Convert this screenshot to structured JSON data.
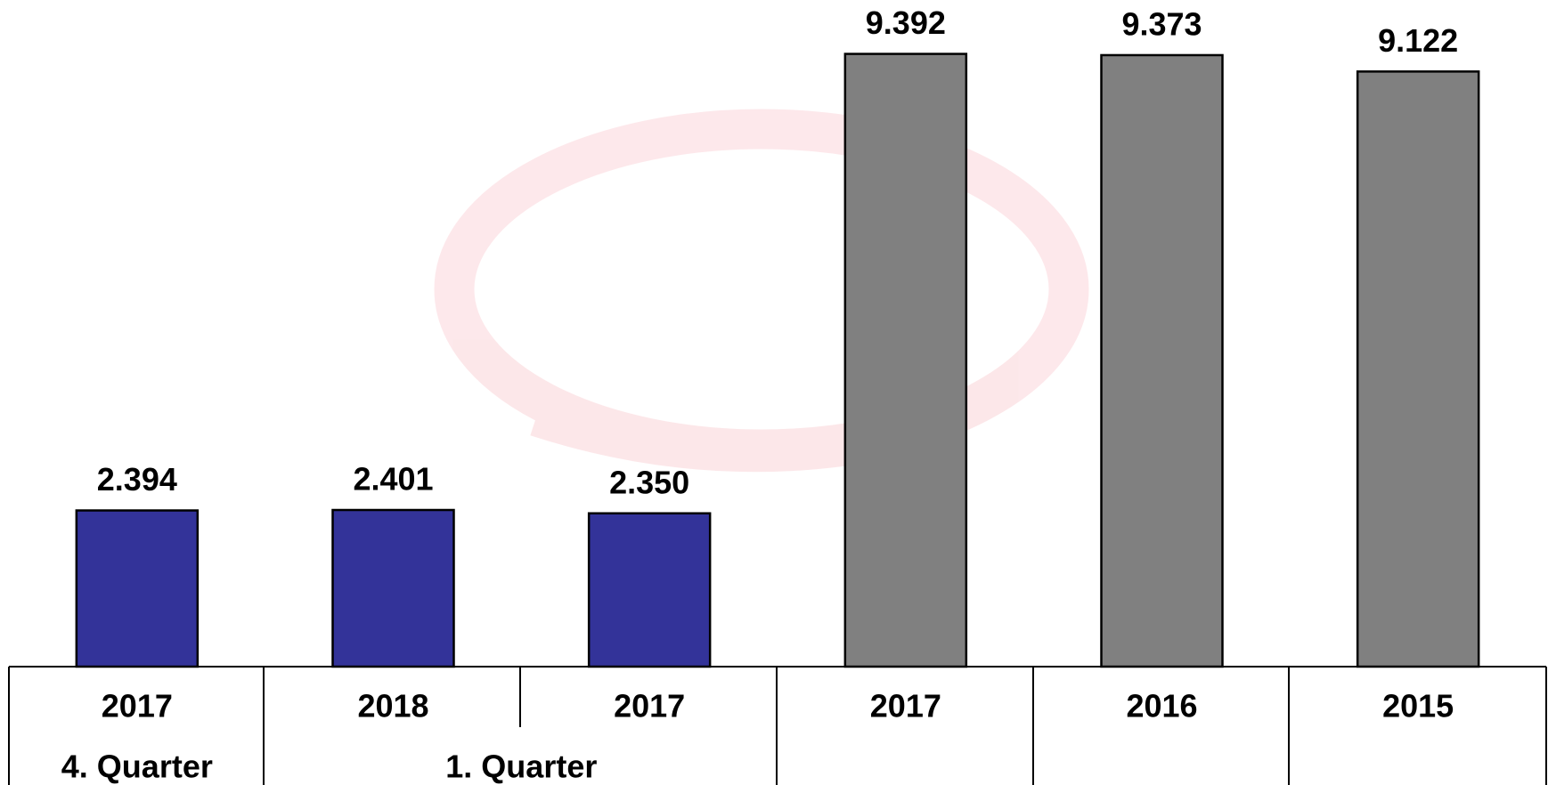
{
  "chart_data": {
    "type": "bar",
    "categories": [
      "2017",
      "2018",
      "2017",
      "2017",
      "2016",
      "2015"
    ],
    "groups": [
      {
        "label": "4. Quarter",
        "span": 1
      },
      {
        "label": "1. Quarter",
        "span": 2
      }
    ],
    "values": [
      2.394,
      2.401,
      2.35,
      9.392,
      9.373,
      9.122
    ],
    "value_labels": [
      "2.394",
      "2.401",
      "2.350",
      "9.392",
      "9.373",
      "9.122"
    ],
    "colors": [
      "#333399",
      "#333399",
      "#333399",
      "#808080",
      "#808080",
      "#808080"
    ]
  }
}
